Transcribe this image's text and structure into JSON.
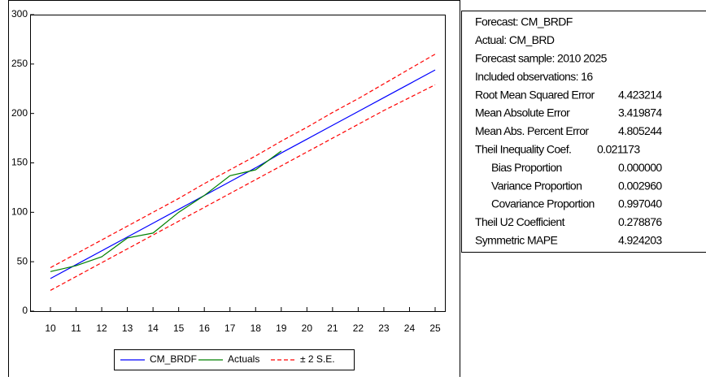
{
  "chart_data": {
    "type": "line",
    "categories": [
      "10",
      "11",
      "12",
      "13",
      "14",
      "15",
      "16",
      "17",
      "18",
      "19",
      "20",
      "21",
      "22",
      "23",
      "24",
      "25"
    ],
    "series": [
      {
        "name": "CM_BRDF",
        "color": "#0000ff",
        "values": [
          33,
          47,
          61,
          75,
          89,
          103,
          117,
          131,
          145,
          160,
          174,
          188,
          202,
          216,
          230,
          244
        ]
      },
      {
        "name": "Actuals",
        "color": "#008000",
        "values": [
          40,
          46,
          55,
          74,
          79,
          100,
          117,
          137,
          143,
          162,
          null,
          null,
          null,
          null,
          null,
          null
        ]
      },
      {
        "name": "± 2 S.E.",
        "color": "#ff0000",
        "dashed": true,
        "upper": [
          44,
          58,
          72,
          86,
          100,
          114,
          129,
          143,
          157,
          172,
          186,
          201,
          215,
          230,
          245,
          260
        ],
        "lower": [
          21,
          35,
          49,
          63,
          77,
          91,
          105,
          119,
          133,
          147,
          161,
          175,
          189,
          203,
          216,
          229
        ]
      }
    ],
    "ylim": [
      0,
      300
    ],
    "yticks": [
      0,
      50,
      100,
      150,
      200,
      250,
      300
    ],
    "legend": "bottom"
  },
  "stats": {
    "rows": [
      {
        "label": "Forecast: CM_BRDF"
      },
      {
        "label": "Actual: CM_BRD"
      },
      {
        "label": "Forecast sample: 2010 2025"
      },
      {
        "label": "Included observations: 16"
      },
      {
        "label": "Root Mean Squared Error",
        "value": "4.423214"
      },
      {
        "label": "Mean Absolute Error",
        "value": "3.419874"
      },
      {
        "label": "Mean Abs. Percent Error",
        "value": "4.805244"
      },
      {
        "label": "Theil Inequality Coef.",
        "value": "0.021173",
        "inline": true
      },
      {
        "label": "Bias Proportion",
        "value": "0.000000",
        "indent": true
      },
      {
        "label": "Variance Proportion",
        "value": "0.002960",
        "indent": true
      },
      {
        "label": "Covariance Proportion",
        "value": "0.997040",
        "indent": true
      },
      {
        "label": "Theil U2 Coefficient",
        "value": "0.278876"
      },
      {
        "label": "Symmetric MAPE",
        "value": "4.924203"
      }
    ]
  }
}
